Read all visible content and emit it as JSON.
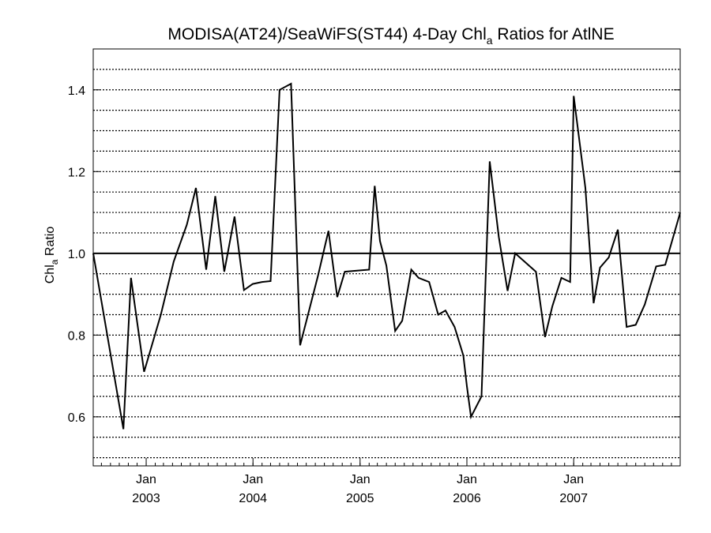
{
  "chart_data": {
    "type": "line",
    "title": {
      "prefix": "MODISA(AT24)/SeaWiFS(ST44) 4-Day Chl",
      "subscript": "a",
      "suffix": " Ratios for AtlNE"
    },
    "ylabel": {
      "prefix": "Chl",
      "subscript": "a",
      "suffix": " Ratio"
    },
    "xlim": [
      "2002-07-04",
      "2007-12-31"
    ],
    "ylim": [
      0.48,
      1.5
    ],
    "y_ticks": [
      0.6,
      0.8,
      1.0,
      1.2,
      1.4
    ],
    "y_tick_labels": [
      "0.6",
      "0.8",
      "1.0",
      "1.2",
      "1.4"
    ],
    "x_ticks": [
      {
        "date": "2003-01-01",
        "month": "Jan",
        "year": "2003"
      },
      {
        "date": "2004-01-01",
        "month": "Jan",
        "year": "2004"
      },
      {
        "date": "2005-01-01",
        "month": "Jan",
        "year": "2005"
      },
      {
        "date": "2006-01-01",
        "month": "Jan",
        "year": "2006"
      },
      {
        "date": "2007-01-01",
        "month": "Jan",
        "year": "2007"
      }
    ],
    "grid": "horizontal dotted every 0.05",
    "reference_line": 1.0,
    "series": [
      {
        "color": "#000000",
        "points": [
          [
            "2002-07-04",
            1.0
          ],
          [
            "2002-10-15",
            0.57
          ],
          [
            "2002-11-10",
            0.94
          ],
          [
            "2002-12-25",
            0.71
          ],
          [
            "2003-02-20",
            0.85
          ],
          [
            "2003-04-05",
            0.98
          ],
          [
            "2003-05-20",
            1.07
          ],
          [
            "2003-06-20",
            1.16
          ],
          [
            "2003-07-25",
            0.96
          ],
          [
            "2003-08-25",
            1.14
          ],
          [
            "2003-09-25",
            0.955
          ],
          [
            "2003-10-30",
            1.09
          ],
          [
            "2003-12-01",
            0.91
          ],
          [
            "2003-12-31",
            0.925
          ],
          [
            "2004-02-01",
            0.93
          ],
          [
            "2004-03-01",
            0.932
          ],
          [
            "2004-04-01",
            1.4
          ],
          [
            "2004-05-10",
            1.415
          ],
          [
            "2004-06-10",
            0.775
          ],
          [
            "2004-08-10",
            0.945
          ],
          [
            "2004-09-15",
            1.055
          ],
          [
            "2004-10-15",
            0.893
          ],
          [
            "2004-11-10",
            0.955
          ],
          [
            "2004-12-25",
            0.958
          ],
          [
            "2005-02-01",
            0.96
          ],
          [
            "2005-02-20",
            1.165
          ],
          [
            "2005-03-10",
            1.03
          ],
          [
            "2005-04-01",
            0.97
          ],
          [
            "2005-05-01",
            0.81
          ],
          [
            "2005-05-25",
            0.835
          ],
          [
            "2005-06-25",
            0.96
          ],
          [
            "2005-07-20",
            0.94
          ],
          [
            "2005-08-25",
            0.93
          ],
          [
            "2005-09-25",
            0.85
          ],
          [
            "2005-10-20",
            0.86
          ],
          [
            "2005-11-20",
            0.82
          ],
          [
            "2005-12-20",
            0.75
          ],
          [
            "2006-01-01",
            0.675
          ],
          [
            "2006-01-15",
            0.6
          ],
          [
            "2006-02-20",
            0.65
          ],
          [
            "2006-03-20",
            1.225
          ],
          [
            "2006-04-20",
            1.04
          ],
          [
            "2006-05-20",
            0.908
          ],
          [
            "2006-06-15",
            1.0
          ],
          [
            "2006-08-25",
            0.955
          ],
          [
            "2006-09-25",
            0.795
          ],
          [
            "2006-10-20",
            0.87
          ],
          [
            "2006-11-20",
            0.94
          ],
          [
            "2006-12-20",
            0.93
          ],
          [
            "2007-01-01",
            1.385
          ],
          [
            "2007-02-10",
            1.16
          ],
          [
            "2007-03-10",
            0.878
          ],
          [
            "2007-04-01",
            0.965
          ],
          [
            "2007-05-01",
            0.99
          ],
          [
            "2007-06-01",
            1.058
          ],
          [
            "2007-07-01",
            0.82
          ],
          [
            "2007-08-01",
            0.825
          ],
          [
            "2007-09-01",
            0.875
          ],
          [
            "2007-10-10",
            0.968
          ],
          [
            "2007-11-10",
            0.972
          ],
          [
            "2007-12-31",
            1.1
          ]
        ]
      }
    ]
  }
}
